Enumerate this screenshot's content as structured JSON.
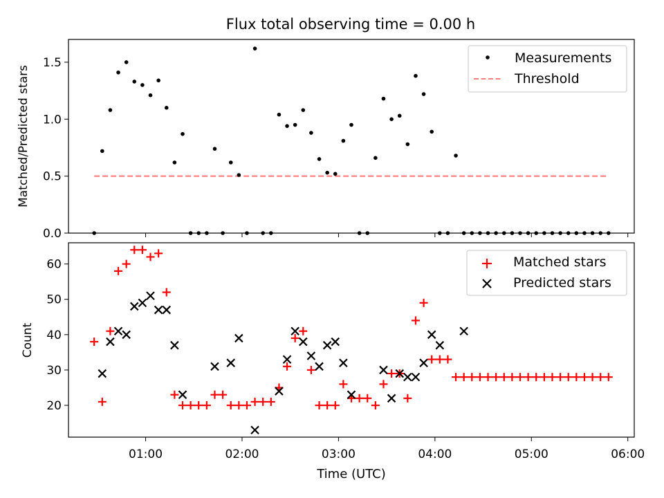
{
  "title": "Flux total observing time = 0.00 h",
  "chart_data": [
    {
      "type": "scatter",
      "ylabel": "Matched/Predicted stars",
      "ylim": [
        0,
        1.7
      ],
      "yticks": [
        "0.0",
        "0.5",
        "1.0",
        "1.5"
      ],
      "xlim": [
        "00:12",
        "06:04"
      ],
      "legend": {
        "placement": "top-right",
        "entries": [
          "Measurements",
          "Threshold"
        ]
      },
      "colors": {
        "measurements": "#000000",
        "threshold": "#ff8080"
      },
      "series": [
        {
          "name": "Measurements",
          "x": [
            "00:28",
            "00:33",
            "00:38",
            "00:43",
            "00:48",
            "00:53",
            "00:58",
            "01:03",
            "01:08",
            "01:13",
            "01:18",
            "01:23",
            "01:28",
            "01:33",
            "01:38",
            "01:43",
            "01:48",
            "01:53",
            "01:58",
            "02:03",
            "02:08",
            "02:13",
            "02:18",
            "02:23",
            "02:28",
            "02:33",
            "02:38",
            "02:43",
            "02:48",
            "02:53",
            "02:58",
            "03:03",
            "03:08",
            "03:13",
            "03:18",
            "03:23",
            "03:28",
            "03:33",
            "03:38",
            "03:43",
            "03:48",
            "03:53",
            "03:58",
            "04:03",
            "04:08",
            "04:13",
            "04:18",
            "04:23",
            "04:28",
            "04:33",
            "04:38",
            "04:43",
            "04:48",
            "04:53",
            "04:58",
            "05:03",
            "05:08",
            "05:13",
            "05:18",
            "05:23",
            "05:28",
            "05:33",
            "05:38",
            "05:43",
            "05:48"
          ],
          "y": [
            0,
            0.72,
            1.08,
            1.41,
            1.5,
            1.33,
            1.3,
            1.21,
            1.34,
            1.1,
            0.62,
            0.87,
            0,
            0,
            0,
            0.74,
            0,
            0.62,
            0.51,
            0,
            1.62,
            0,
            0,
            1.04,
            0.94,
            0.95,
            1.08,
            0.88,
            0.65,
            0.53,
            0.52,
            0.81,
            0.95,
            0,
            0,
            0.66,
            1.18,
            1.0,
            1.03,
            0.78,
            1.38,
            1.22,
            0.89,
            0,
            0,
            0.68,
            0,
            0,
            0,
            0,
            0,
            0,
            0,
            0,
            0,
            0,
            0,
            0,
            0,
            0,
            0,
            0,
            0,
            0,
            0
          ]
        },
        {
          "name": "Threshold",
          "x": [
            "00:28",
            "05:48"
          ],
          "y": [
            0.5,
            0.5
          ]
        }
      ]
    },
    {
      "type": "scatter",
      "xlabel": "Time (UTC)",
      "ylabel": "Count",
      "ylim": [
        11,
        66
      ],
      "yticks": [
        "20",
        "30",
        "40",
        "50",
        "60"
      ],
      "xlim": [
        "00:12",
        "06:04"
      ],
      "xticks": [
        "01:00",
        "02:00",
        "03:00",
        "04:00",
        "05:00",
        "06:00"
      ],
      "legend": {
        "placement": "top-right",
        "entries": [
          "Matched stars",
          "Predicted stars"
        ]
      },
      "colors": {
        "matched": "#ff0000",
        "predicted": "#000000"
      },
      "series": [
        {
          "name": "Matched stars",
          "x": [
            "00:28",
            "00:33",
            "00:38",
            "00:43",
            "00:48",
            "00:53",
            "00:58",
            "01:03",
            "01:08",
            "01:13",
            "01:18",
            "01:23",
            "01:28",
            "01:33",
            "01:38",
            "01:43",
            "01:48",
            "01:53",
            "01:58",
            "02:03",
            "02:08",
            "02:13",
            "02:18",
            "02:23",
            "02:28",
            "02:33",
            "02:38",
            "02:43",
            "02:48",
            "02:53",
            "02:58",
            "03:03",
            "03:08",
            "03:13",
            "03:18",
            "03:23",
            "03:28",
            "03:33",
            "03:38",
            "03:43",
            "03:48",
            "03:53",
            "03:58",
            "04:03",
            "04:08",
            "04:13",
            "04:18",
            "04:23",
            "04:28",
            "04:33",
            "04:38",
            "04:43",
            "04:48",
            "04:53",
            "04:58",
            "05:03",
            "05:08",
            "05:13",
            "05:18",
            "05:23",
            "05:28",
            "05:33",
            "05:38",
            "05:43",
            "05:48"
          ],
          "y": [
            38,
            21,
            41,
            58,
            60,
            64,
            64,
            62,
            63,
            52,
            23,
            20,
            20,
            20,
            20,
            23,
            23,
            20,
            20,
            20,
            21,
            21,
            21,
            25,
            31,
            39,
            41,
            30,
            20,
            20,
            20,
            26,
            22,
            22,
            22,
            20,
            26,
            29,
            29,
            22,
            44,
            49,
            33,
            33,
            33,
            28,
            28,
            28,
            28,
            28,
            28,
            28,
            28,
            28,
            28,
            28,
            28,
            28,
            28,
            28,
            28,
            28,
            28,
            28,
            28
          ]
        },
        {
          "name": "Predicted stars",
          "x": [
            "00:33",
            "00:38",
            "00:43",
            "00:48",
            "00:53",
            "00:58",
            "01:03",
            "01:08",
            "01:13",
            "01:18",
            "01:23",
            "01:43",
            "01:53",
            "01:58",
            "02:08",
            "02:23",
            "02:28",
            "02:33",
            "02:38",
            "02:43",
            "02:48",
            "02:53",
            "02:58",
            "03:03",
            "03:08",
            "03:28",
            "03:33",
            "03:38",
            "03:43",
            "03:48",
            "03:53",
            "03:58",
            "04:03",
            "04:18"
          ],
          "y": [
            29,
            38,
            41,
            40,
            48,
            49,
            51,
            47,
            47,
            37,
            23,
            31,
            32,
            39,
            13,
            24,
            33,
            41,
            38,
            34,
            31,
            37,
            38,
            32,
            23,
            30,
            22,
            29,
            28,
            28,
            32,
            40,
            37,
            41
          ]
        }
      ]
    }
  ]
}
